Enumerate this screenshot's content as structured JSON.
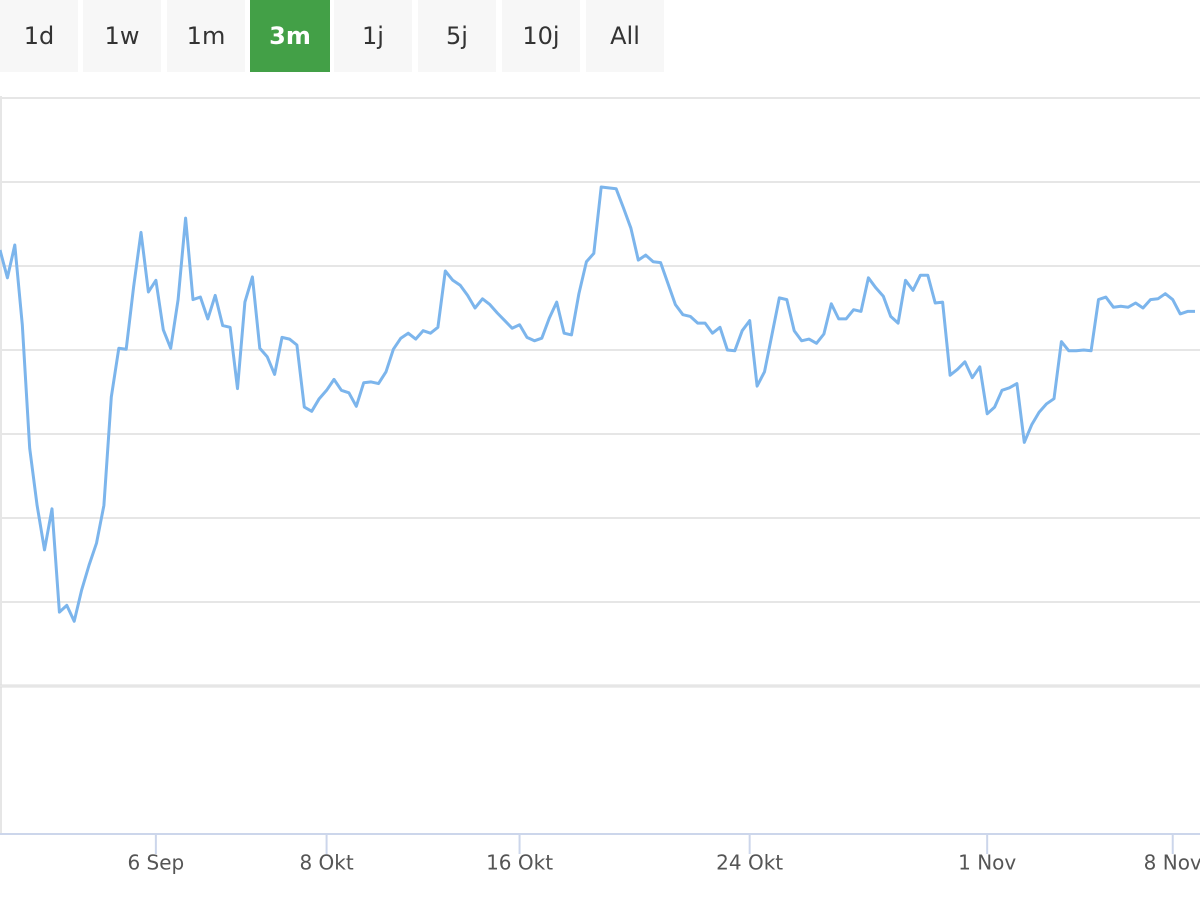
{
  "range_buttons": [
    "1d",
    "1w",
    "1m",
    "3m",
    "1j",
    "5j",
    "10j",
    "All"
  ],
  "active_range": "3m",
  "chart_data": {
    "type": "line",
    "color": "#7cb5ec",
    "grid": true,
    "ylim": [
      0,
      7
    ],
    "yticks": [
      0,
      1,
      2,
      3,
      4,
      5,
      6,
      7
    ],
    "categories": [
      null,
      null,
      null,
      null,
      null,
      null,
      null,
      null,
      null,
      null,
      null,
      null,
      null,
      null,
      null,
      null,
      null,
      null,
      null,
      null,
      null,
      "6 Sep",
      null,
      null,
      null,
      null,
      null,
      null,
      null,
      null,
      null,
      null,
      null,
      null,
      null,
      null,
      null,
      null,
      null,
      null,
      null,
      null,
      null,
      null,
      "8 Okt",
      null,
      null,
      null,
      null,
      null,
      null,
      null,
      null,
      null,
      null,
      null,
      null,
      null,
      null,
      null,
      null,
      null,
      null,
      null,
      null,
      null,
      null,
      null,
      null,
      null,
      "16 Okt",
      null,
      null,
      null,
      null,
      null,
      null,
      null,
      null,
      null,
      null,
      null,
      null,
      null,
      null,
      null,
      null,
      null,
      null,
      null,
      null,
      null,
      null,
      null,
      null,
      null,
      null,
      null,
      null,
      null,
      null,
      "24 Okt",
      null,
      null,
      null,
      null,
      null,
      null,
      null,
      null,
      null,
      null,
      null,
      null,
      null,
      null,
      null,
      null,
      null,
      null,
      null,
      null,
      null,
      null,
      null,
      null,
      null,
      null,
      null,
      null,
      null,
      null,
      null,
      "1 Nov",
      null,
      null,
      null,
      null,
      null,
      null,
      null,
      null,
      null,
      null,
      null,
      null,
      null,
      null,
      null,
      null,
      null,
      null,
      null,
      null,
      null,
      null,
      null,
      null,
      "8 Nov",
      null,
      null,
      null
    ],
    "values": [
      5.19,
      4.86,
      5.25,
      4.3,
      2.83,
      2.15,
      1.62,
      2.11,
      0.88,
      0.96,
      0.77,
      1.14,
      1.44,
      1.7,
      2.15,
      3.44,
      4.02,
      4.01,
      4.75,
      5.4,
      4.69,
      4.83,
      4.24,
      4.02,
      4.6,
      5.57,
      4.6,
      4.63,
      4.37,
      4.65,
      4.29,
      4.27,
      3.54,
      4.57,
      4.87,
      4.02,
      3.92,
      3.71,
      4.15,
      4.13,
      4.06,
      3.32,
      3.27,
      3.42,
      3.52,
      3.65,
      3.52,
      3.49,
      3.33,
      3.61,
      3.62,
      3.6,
      3.74,
      4.01,
      4.14,
      4.2,
      4.13,
      4.23,
      4.2,
      4.27,
      4.94,
      4.83,
      4.77,
      4.65,
      4.5,
      4.61,
      4.54,
      4.44,
      4.35,
      4.26,
      4.3,
      4.15,
      4.11,
      4.14,
      4.38,
      4.57,
      4.2,
      4.18,
      4.67,
      5.05,
      5.15,
      5.94,
      5.93,
      5.92,
      5.69,
      5.45,
      5.07,
      5.13,
      5.05,
      5.04,
      4.79,
      4.54,
      4.42,
      4.4,
      4.32,
      4.32,
      4.2,
      4.27,
      4.0,
      3.99,
      4.23,
      4.35,
      3.57,
      3.74,
      4.18,
      4.62,
      4.6,
      4.23,
      4.11,
      4.13,
      4.08,
      4.19,
      4.55,
      4.37,
      4.37,
      4.48,
      4.46,
      4.86,
      4.74,
      4.64,
      4.4,
      4.32,
      4.83,
      4.71,
      4.89,
      4.89,
      4.56,
      4.57,
      3.7,
      3.77,
      3.86,
      3.67,
      3.8,
      3.24,
      3.32,
      3.52,
      3.55,
      3.6,
      2.9,
      3.11,
      3.26,
      3.36,
      3.42,
      4.1,
      3.99,
      3.99,
      4.0,
      3.99,
      4.6,
      4.63,
      4.51,
      4.52,
      4.51,
      4.56,
      4.5,
      4.6,
      4.61,
      4.67,
      4.6,
      4.43,
      4.46,
      4.46
    ]
  }
}
